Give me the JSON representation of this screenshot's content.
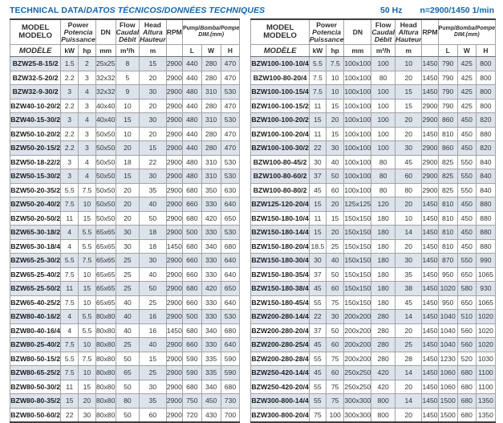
{
  "header": {
    "title_normal": "TECHNICAL DATA/",
    "title_italic": "DATOS TÉCNICOS/DONNÉES TECHNIQUES",
    "frequency": "50 Hz",
    "speed": "n=2900/1450 1/min"
  },
  "columns": {
    "model_l1": "MODEL",
    "model_l2": "MODELO",
    "model_l3": "MODÈLE",
    "power_l1": "Power",
    "power_l2": "Potencia",
    "power_l3": "Puissance",
    "unit_kw": "kW",
    "unit_hp": "hp",
    "dn": "DN",
    "unit_mm": "mm",
    "flow_l1": "Flow",
    "flow_l2": "Caudal",
    "flow_l3": "Débit",
    "unit_flow": "m³/h",
    "head_l1": "Head",
    "head_l2": "Altura",
    "head_l3": "Hauteur",
    "unit_m": "m",
    "rpm": "RPM",
    "dim_l1a": "Pump/",
    "dim_l1b": "Bomba/Pompe",
    "dim_l2": "DIM.(mm)",
    "unit_l": "L",
    "unit_w": "W",
    "unit_h": "H"
  },
  "tables": {
    "left": {
      "rows": [
        [
          "BZW25-8-15/2",
          "1.5",
          "2",
          "25x25",
          "8",
          "15",
          "2900",
          "440",
          "280",
          "470"
        ],
        [
          "BZW32-5-20/2",
          "2.2",
          "3",
          "32x32",
          "5",
          "20",
          "2900",
          "440",
          "280",
          "470"
        ],
        [
          "BZW32-9-30/2",
          "3",
          "4",
          "32x32",
          "9",
          "30",
          "2900",
          "480",
          "310",
          "530"
        ],
        [
          "BZW40-10-20/2",
          "2.2",
          "3",
          "40x40",
          "10",
          "20",
          "2900",
          "440",
          "280",
          "470"
        ],
        [
          "BZW40-15-30/2",
          "3",
          "4",
          "40x40",
          "15",
          "30",
          "2900",
          "480",
          "310",
          "530"
        ],
        [
          "BZW50-10-20/2",
          "2.2",
          "3",
          "50x50",
          "10",
          "20",
          "2900",
          "440",
          "280",
          "470"
        ],
        [
          "BZW50-20-15/2",
          "2.2",
          "3",
          "50x50",
          "20",
          "15",
          "2900",
          "440",
          "280",
          "470"
        ],
        [
          "BZW50-18-22/2",
          "3",
          "4",
          "50x50",
          "18",
          "22",
          "2900",
          "480",
          "310",
          "530"
        ],
        [
          "BZW50-15-30/2",
          "3",
          "4",
          "50x50",
          "15",
          "30",
          "2900",
          "480",
          "310",
          "530"
        ],
        [
          "BZW50-20-35/2",
          "5.5",
          "7.5",
          "50x50",
          "20",
          "35",
          "2900",
          "680",
          "350",
          "630"
        ],
        [
          "BZW50-20-40/2",
          "7.5",
          "10",
          "50x50",
          "20",
          "40",
          "2900",
          "660",
          "330",
          "640"
        ],
        [
          "BZW50-20-50/2",
          "11",
          "15",
          "50x50",
          "20",
          "50",
          "2900",
          "680",
          "420",
          "650"
        ],
        [
          "BZW65-30-18/2",
          "4",
          "5.5",
          "65x65",
          "30",
          "18",
          "2900",
          "500",
          "330",
          "530"
        ],
        [
          "BZW65-30-18/4",
          "4",
          "5.5",
          "65x65",
          "30",
          "18",
          "1450",
          "680",
          "340",
          "680"
        ],
        [
          "BZW65-25-30/2",
          "5.5",
          "7.5",
          "65x65",
          "25",
          "30",
          "2900",
          "660",
          "330",
          "640"
        ],
        [
          "BZW65-25-40/2",
          "7.5",
          "10",
          "65x65",
          "25",
          "40",
          "2900",
          "660",
          "330",
          "640"
        ],
        [
          "BZW65-25-50/2",
          "11",
          "15",
          "65x65",
          "25",
          "50",
          "2900",
          "680",
          "420",
          "650"
        ],
        [
          "BZW65-40-25/2",
          "7.5",
          "10",
          "65x65",
          "40",
          "25",
          "2900",
          "660",
          "330",
          "640"
        ],
        [
          "BZW80-40-16/2",
          "4",
          "5.5",
          "80x80",
          "40",
          "16",
          "2900",
          "500",
          "330",
          "530"
        ],
        [
          "BZW80-40-16/4",
          "4",
          "5.5",
          "80x80",
          "40",
          "16",
          "1450",
          "680",
          "340",
          "680"
        ],
        [
          "BZW80-25-40/2",
          "7.5",
          "10",
          "80x80",
          "25",
          "40",
          "2900",
          "660",
          "330",
          "640"
        ],
        [
          "BZW80-50-15/2",
          "5.5",
          "7.5",
          "80x80",
          "50",
          "15",
          "2900",
          "590",
          "335",
          "590"
        ],
        [
          "BZW80-65-25/2",
          "7.5",
          "10",
          "80x80",
          "65",
          "25",
          "2900",
          "590",
          "335",
          "590"
        ],
        [
          "BZW80-50-30/2",
          "11",
          "15",
          "80x80",
          "50",
          "30",
          "2900",
          "680",
          "340",
          "680"
        ],
        [
          "BZW80-80-35/2",
          "15",
          "20",
          "80x80",
          "80",
          "35",
          "2900",
          "750",
          "450",
          "730"
        ],
        [
          "BZW80-50-60/2",
          "22",
          "30",
          "80x80",
          "50",
          "60",
          "2900",
          "720",
          "430",
          "700"
        ]
      ]
    },
    "right": {
      "rows": [
        [
          "BZW100-100-10/4",
          "5.5",
          "7.5",
          "100x100",
          "100",
          "10",
          "1450",
          "790",
          "425",
          "800"
        ],
        [
          "BZW100-80-20/4",
          "7.5",
          "10",
          "100x100",
          "80",
          "20",
          "1450",
          "790",
          "425",
          "800"
        ],
        [
          "BZW100-100-15/4",
          "7.5",
          "10",
          "100x100",
          "100",
          "15",
          "1450",
          "790",
          "425",
          "800"
        ],
        [
          "BZW100-100-15/2",
          "11",
          "15",
          "100x100",
          "100",
          "15",
          "2900",
          "790",
          "425",
          "800"
        ],
        [
          "BZW100-100-20/2",
          "15",
          "20",
          "100x100",
          "100",
          "20",
          "2900",
          "860",
          "450",
          "820"
        ],
        [
          "BZW100-100-20/4",
          "11",
          "15",
          "100x100",
          "100",
          "20",
          "1450",
          "810",
          "450",
          "880"
        ],
        [
          "BZW100-100-30/2",
          "22",
          "30",
          "100x100",
          "100",
          "30",
          "2900",
          "860",
          "450",
          "820"
        ],
        [
          "BZW100-80-45/2",
          "30",
          "40",
          "100x100",
          "80",
          "45",
          "2900",
          "825",
          "550",
          "840"
        ],
        [
          "BZW100-80-60/2",
          "37",
          "50",
          "100x100",
          "80",
          "60",
          "2900",
          "825",
          "550",
          "840"
        ],
        [
          "BZW100-80-80/2",
          "45",
          "60",
          "100x100",
          "80",
          "80",
          "2900",
          "825",
          "550",
          "840"
        ],
        [
          "BZW125-120-20/4",
          "15",
          "20",
          "125x125",
          "120",
          "20",
          "1450",
          "810",
          "450",
          "880"
        ],
        [
          "BZW150-180-10/4",
          "11",
          "15",
          "150x150",
          "180",
          "10",
          "1450",
          "810",
          "450",
          "880"
        ],
        [
          "BZW150-180-14/4",
          "15",
          "20",
          "150x150",
          "180",
          "14",
          "1450",
          "810",
          "450",
          "880"
        ],
        [
          "BZW150-180-20/4",
          "18.5",
          "25",
          "150x150",
          "180",
          "20",
          "1450",
          "810",
          "450",
          "880"
        ],
        [
          "BZW150-180-30/4",
          "30",
          "40",
          "150x150",
          "180",
          "30",
          "1450",
          "870",
          "550",
          "990"
        ],
        [
          "BZW150-180-35/4",
          "37",
          "50",
          "150x150",
          "180",
          "35",
          "1450",
          "950",
          "650",
          "1065"
        ],
        [
          "BZW150-180-38/4",
          "45",
          "60",
          "150x150",
          "180",
          "38",
          "1450",
          "1020",
          "580",
          "930"
        ],
        [
          "BZW150-180-45/4",
          "55",
          "75",
          "150x150",
          "180",
          "45",
          "1450",
          "950",
          "650",
          "1065"
        ],
        [
          "BZW200-280-14/4",
          "22",
          "30",
          "200x200",
          "280",
          "14",
          "1450",
          "1040",
          "510",
          "1020"
        ],
        [
          "BZW200-280-20/4",
          "37",
          "50",
          "200x200",
          "280",
          "20",
          "1450",
          "1040",
          "560",
          "1020"
        ],
        [
          "BZW200-280-25/4",
          "45",
          "60",
          "200x200",
          "280",
          "25",
          "1450",
          "1040",
          "560",
          "1020"
        ],
        [
          "BZW200-280-28/4",
          "55",
          "75",
          "200x200",
          "280",
          "28",
          "1450",
          "1230",
          "520",
          "1030"
        ],
        [
          "BZW250-420-14/4",
          "45",
          "60",
          "250x250",
          "420",
          "14",
          "1450",
          "1060",
          "680",
          "1100"
        ],
        [
          "BZW250-420-20/4",
          "55",
          "75",
          "250x250",
          "420",
          "20",
          "1450",
          "1060",
          "680",
          "1100"
        ],
        [
          "BZW300-800-14/4",
          "55",
          "75",
          "300x300",
          "800",
          "14",
          "1450",
          "1500",
          "680",
          "1350"
        ],
        [
          "BZW300-800-20/4",
          "75",
          "100",
          "300x300",
          "800",
          "20",
          "1450",
          "1500",
          "680",
          "1350"
        ]
      ]
    }
  }
}
